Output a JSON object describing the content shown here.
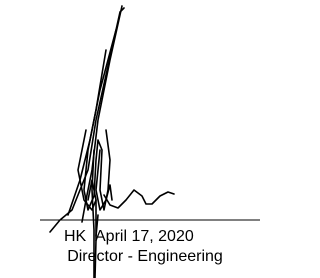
{
  "signature_block": {
    "initials": "HK",
    "date": "April 17, 2020",
    "role": "Director - Engineering"
  }
}
